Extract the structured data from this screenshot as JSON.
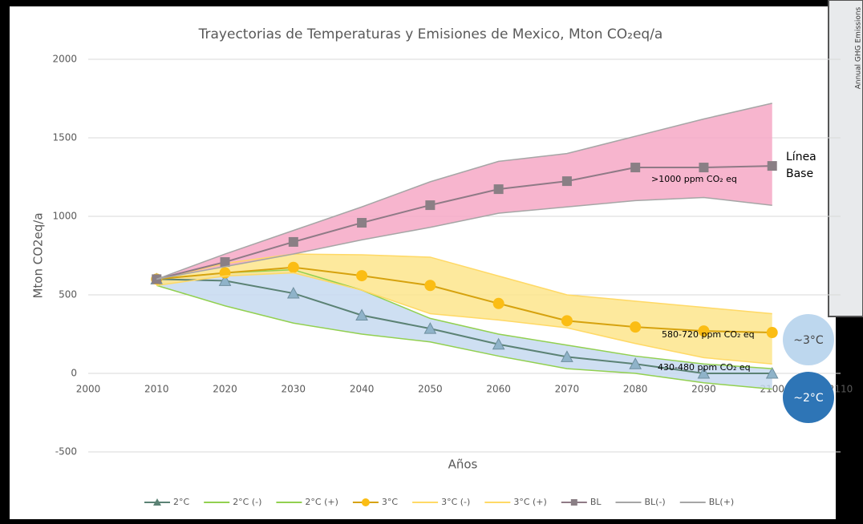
{
  "inset": {
    "text": "Annual GHG Emissions"
  },
  "chart_data": {
    "type": "line",
    "title": "Trayectorias de Temperaturas y Emisiones de Mexico, Mton CO₂eq/a",
    "x_label": "Años",
    "y_label": "Mton CO2eq/a",
    "x": [
      2010,
      2020,
      2030,
      2040,
      2050,
      2060,
      2070,
      2080,
      2090,
      2100
    ],
    "xlim": [
      2000,
      2110
    ],
    "xticks": [
      2000,
      2010,
      2020,
      2030,
      2040,
      2050,
      2060,
      2070,
      2080,
      2090,
      2100,
      2110
    ],
    "ylim": [
      -500,
      2000
    ],
    "yticks": [
      -500,
      0,
      500,
      1000,
      1500,
      2000
    ],
    "grid": true,
    "legend": "bottom",
    "series": [
      {
        "name": "2°C",
        "color": "#5b8274",
        "marker": "triangle",
        "marker_color": "#8fb3c9",
        "values": [
          600,
          590,
          510,
          370,
          285,
          185,
          105,
          60,
          0,
          0
        ]
      },
      {
        "name": "2°C (-)",
        "color": "#92d050",
        "fill": "#c5d9f0",
        "values": [
          560,
          430,
          320,
          250,
          200,
          110,
          30,
          0,
          -60,
          -100
        ]
      },
      {
        "name": "2°C (+)",
        "color": "#92d050",
        "values": [
          600,
          640,
          660,
          530,
          350,
          250,
          180,
          110,
          60,
          30
        ]
      },
      {
        "name": "3°C",
        "color": "#d6a20e",
        "marker": "circle",
        "marker_color": "#fbbd14",
        "values": [
          600,
          640,
          675,
          622,
          560,
          445,
          335,
          295,
          270,
          260
        ]
      },
      {
        "name": "3°C (-)",
        "color": "#ffd966",
        "fill": "#fde58c",
        "values": [
          560,
          620,
          640,
          530,
          380,
          340,
          290,
          190,
          100,
          60
        ]
      },
      {
        "name": "3°C (+)",
        "color": "#ffd966",
        "values": [
          600,
          700,
          760,
          755,
          740,
          620,
          500,
          460,
          420,
          380
        ]
      },
      {
        "name": "BL",
        "color": "#8f7a86",
        "marker": "square",
        "marker_color": "#8a7f85",
        "values": [
          600,
          709,
          837,
          959,
          1071,
          1173,
          1224,
          1311,
          1311,
          1321
        ]
      },
      {
        "name": "BL(-)",
        "color": "#a6a6a6",
        "fill": "#f6a8c6",
        "values": [
          600,
          680,
          760,
          850,
          930,
          1020,
          1060,
          1100,
          1120,
          1070
        ]
      },
      {
        "name": "BL(+)",
        "color": "#a6a6a6",
        "values": [
          600,
          760,
          910,
          1060,
          1220,
          1350,
          1400,
          1510,
          1620,
          1720
        ]
      }
    ],
    "annotations": [
      ">1000 ppm CO₂ eq",
      "Línea",
      "Base",
      "580-720 ppm CO₂ eq",
      "430-480 ppm CO₂ eq",
      "~3°C",
      "~2°C"
    ]
  }
}
